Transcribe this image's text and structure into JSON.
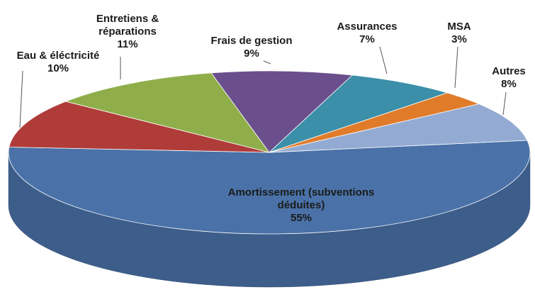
{
  "chart_data": {
    "type": "pie",
    "categories": [
      "Amortissement (subventions déduites)",
      "Eau & éléctricité",
      "Entretiens & réparations",
      "Frais de gestion",
      "Assurances",
      "MSA",
      "Autres"
    ],
    "values": [
      55,
      10,
      11,
      9,
      7,
      3,
      8
    ],
    "value_labels": [
      "55%",
      "10%",
      "11%",
      "9%",
      "7%",
      "3%",
      "8%"
    ],
    "colors": [
      "#4a72a8",
      "#b03c3a",
      "#8fae4a",
      "#6b4f8c",
      "#3b8fa8",
      "#e07b2a",
      "#93abd3"
    ]
  }
}
